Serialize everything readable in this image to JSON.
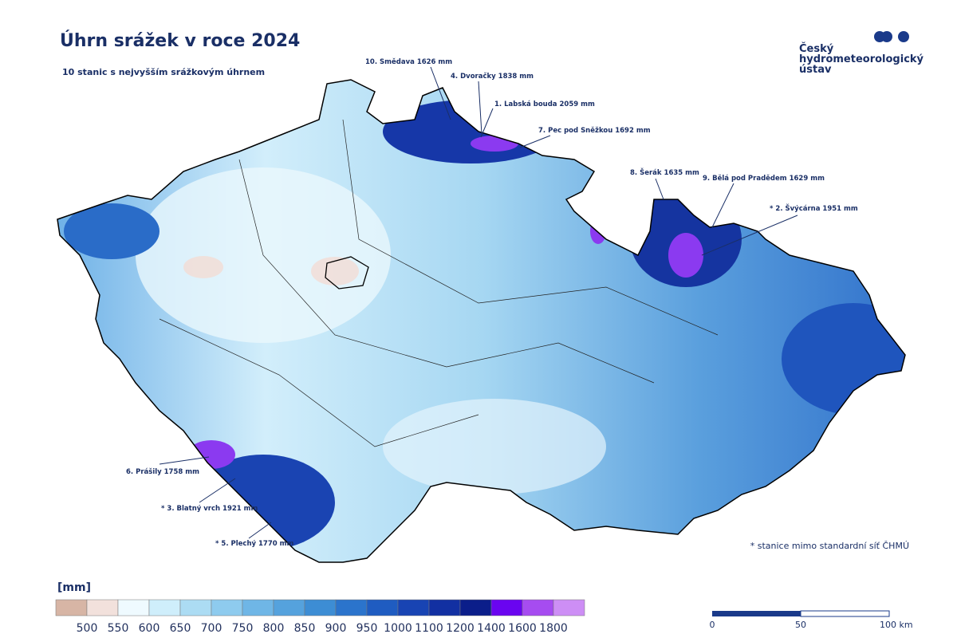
{
  "header": {
    "title": "Úhrn srážek v roce 2024",
    "subtitle": "10 stanic s nejvyšším srážkovým úhrnem"
  },
  "logo": {
    "lines": [
      "Český",
      "hydrometeorologický",
      "ústav"
    ]
  },
  "stations": [
    "10. Smědava 1626 mm",
    "4. Dvoračky 1838 mm",
    "1. Labská bouda 2059 mm",
    "7. Pec pod Sněžkou 1692 mm",
    "8. Šerák 1635 mm",
    "9. Bělá pod Pradědem 1629 mm",
    "* 2. Švýcárna 1951 mm",
    "6. Prášily 1758 mm",
    "* 3. Blatný vrch 1921 mm",
    "* 5. Plechý 1770 mm"
  ],
  "legend": {
    "unit": "[mm]",
    "colors": [
      "#d7b5a5",
      "#f2e1dc",
      "#effaff",
      "#cfeefb",
      "#acdcf3",
      "#8ecbee",
      "#6fb6e6",
      "#55a2dd",
      "#3d8dd4",
      "#2b74cc",
      "#1f5cc1",
      "#1844b3",
      "#1230a2",
      "#0b1e8a",
      "#6a05f0",
      "#a64cf0",
      "#cd8ef5"
    ],
    "labels": [
      "500",
      "550",
      "600",
      "650",
      "700",
      "750",
      "800",
      "850",
      "900",
      "950",
      "1000",
      "1100",
      "1200",
      "1400",
      "1600",
      "1800"
    ]
  },
  "scale_bar": {
    "labels": [
      "0",
      "50",
      "100 km"
    ]
  },
  "footnote": "* stanice mimo standardní síť ČHMÚ"
}
